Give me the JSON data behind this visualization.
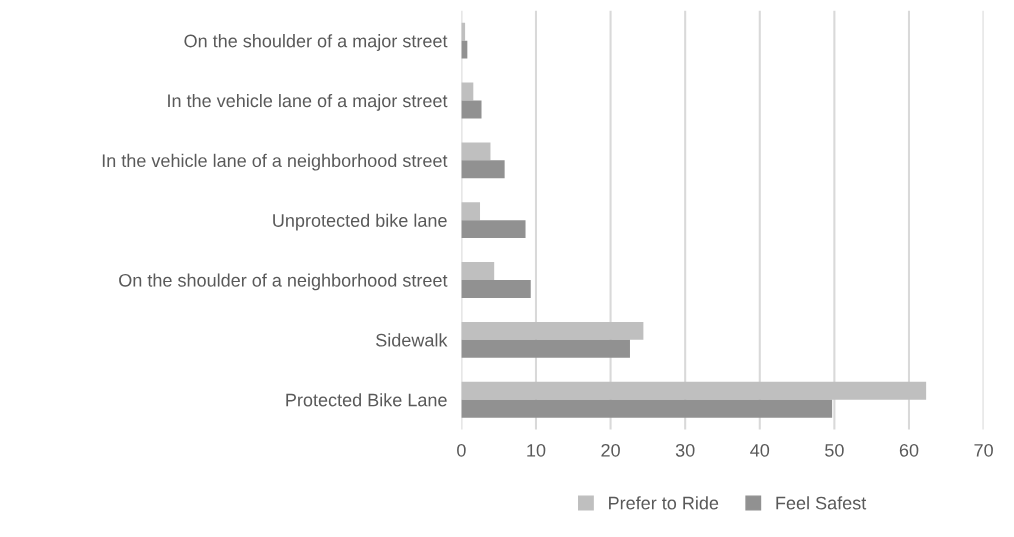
{
  "chart_data": {
    "type": "bar",
    "orientation": "horizontal",
    "categories": [
      "On the shoulder of a major street",
      "In the vehicle lane of a major street",
      "In the vehicle lane of a neighborhood street",
      "Unprotected bike lane",
      "On the shoulder of a neighborhood street",
      "Sidewalk",
      "Protected Bike Lane"
    ],
    "series": [
      {
        "name": "Prefer to Ride",
        "color": "#bfbfbf",
        "values": [
          0.5,
          1.6,
          3.9,
          2.5,
          4.4,
          24.4,
          62.3
        ]
      },
      {
        "name": "Feel Safest",
        "color": "#919191",
        "values": [
          0.8,
          2.7,
          5.8,
          8.6,
          9.3,
          22.6,
          49.7
        ]
      }
    ],
    "xlim": [
      0,
      70
    ],
    "xticks": [
      0,
      10,
      20,
      30,
      40,
      50,
      60,
      70
    ],
    "grid": "x",
    "legend": "bottom"
  }
}
